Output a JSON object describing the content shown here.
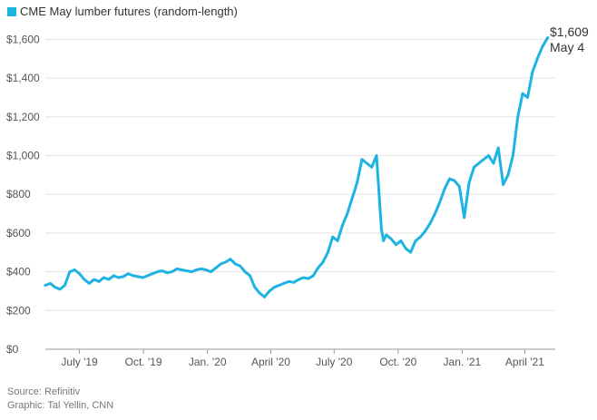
{
  "chart_data": {
    "type": "line",
    "title": "CME May lumber futures (random-length)",
    "colors": {
      "series": "#1fb3e3"
    },
    "ylim": [
      0,
      1700
    ],
    "yticks": [
      0,
      200,
      400,
      600,
      800,
      1000,
      1200,
      1400,
      1600
    ],
    "ytick_labels": [
      "$0",
      "$200",
      "$400",
      "$600",
      "$800",
      "$1,000",
      "$1,200",
      "$1,400",
      "$1,600"
    ],
    "xlim": [
      "2019-05-13",
      "2021-05-07"
    ],
    "xticks": [
      "2019-07-01",
      "2019-10-01",
      "2020-01-01",
      "2020-04-01",
      "2020-07-01",
      "2020-10-01",
      "2021-01-01",
      "2021-04-01"
    ],
    "xtick_labels": [
      "July '19",
      "Oct. '19",
      "Jan. '20",
      "April '20",
      "July '20",
      "Oct. '20",
      "Jan. '21",
      "April '21"
    ],
    "grid": true,
    "legend": "top-left",
    "series": [
      {
        "x": [
          "2019-05-13",
          "2019-05-20",
          "2019-05-27",
          "2019-06-03",
          "2019-06-10",
          "2019-06-17",
          "2019-06-24",
          "2019-07-01",
          "2019-07-08",
          "2019-07-15",
          "2019-07-22",
          "2019-07-29",
          "2019-08-05",
          "2019-08-12",
          "2019-08-19",
          "2019-08-26",
          "2019-09-02",
          "2019-09-09",
          "2019-09-16",
          "2019-09-23",
          "2019-09-30",
          "2019-10-07",
          "2019-10-14",
          "2019-10-21",
          "2019-10-28",
          "2019-11-04",
          "2019-11-11",
          "2019-11-18",
          "2019-11-25",
          "2019-12-02",
          "2019-12-09",
          "2019-12-16",
          "2019-12-23",
          "2019-12-30",
          "2020-01-06",
          "2020-01-13",
          "2020-01-20",
          "2020-01-27",
          "2020-02-03",
          "2020-02-10",
          "2020-02-17",
          "2020-02-24",
          "2020-03-02",
          "2020-03-09",
          "2020-03-16",
          "2020-03-23",
          "2020-03-30",
          "2020-04-06",
          "2020-04-13",
          "2020-04-20",
          "2020-04-27",
          "2020-05-04",
          "2020-05-11",
          "2020-05-18",
          "2020-05-25",
          "2020-06-01",
          "2020-06-08",
          "2020-06-15",
          "2020-06-22",
          "2020-06-29",
          "2020-07-06",
          "2020-07-13",
          "2020-07-20",
          "2020-07-27",
          "2020-08-03",
          "2020-08-10",
          "2020-08-17",
          "2020-08-24",
          "2020-08-31",
          "2020-09-07",
          "2020-09-10",
          "2020-09-14",
          "2020-09-21",
          "2020-09-28",
          "2020-10-05",
          "2020-10-12",
          "2020-10-19",
          "2020-10-26",
          "2020-11-02",
          "2020-11-09",
          "2020-11-16",
          "2020-11-23",
          "2020-11-30",
          "2020-12-07",
          "2020-12-14",
          "2020-12-21",
          "2020-12-28",
          "2021-01-04",
          "2021-01-11",
          "2021-01-18",
          "2021-01-25",
          "2021-02-01",
          "2021-02-08",
          "2021-02-15",
          "2021-02-22",
          "2021-03-01",
          "2021-03-08",
          "2021-03-15",
          "2021-03-22",
          "2021-03-29",
          "2021-04-05",
          "2021-04-12",
          "2021-04-19",
          "2021-04-26",
          "2021-05-04"
        ],
        "y": [
          330,
          340,
          320,
          310,
          330,
          400,
          410,
          390,
          360,
          340,
          360,
          350,
          370,
          360,
          380,
          370,
          375,
          390,
          380,
          375,
          370,
          380,
          390,
          400,
          405,
          395,
          400,
          415,
          410,
          405,
          400,
          410,
          415,
          410,
          400,
          420,
          440,
          450,
          465,
          440,
          430,
          400,
          380,
          320,
          290,
          270,
          300,
          320,
          330,
          340,
          350,
          345,
          360,
          370,
          365,
          380,
          420,
          450,
          500,
          580,
          560,
          640,
          700,
          780,
          860,
          980,
          960,
          940,
          1000,
          620,
          560,
          590,
          570,
          540,
          560,
          520,
          500,
          560,
          580,
          610,
          650,
          700,
          760,
          830,
          880,
          870,
          840,
          680,
          860,
          940,
          960,
          980,
          1000,
          960,
          1040,
          850,
          900,
          1000,
          1200,
          1320,
          1300,
          1430,
          1500,
          1560,
          1609
        ]
      }
    ]
  },
  "annotation": {
    "value": "$1,609",
    "date": "May 4"
  },
  "footer": {
    "source": "Source: Refinitiv",
    "credit": "Graphic: Tal Yellin, CNN"
  }
}
